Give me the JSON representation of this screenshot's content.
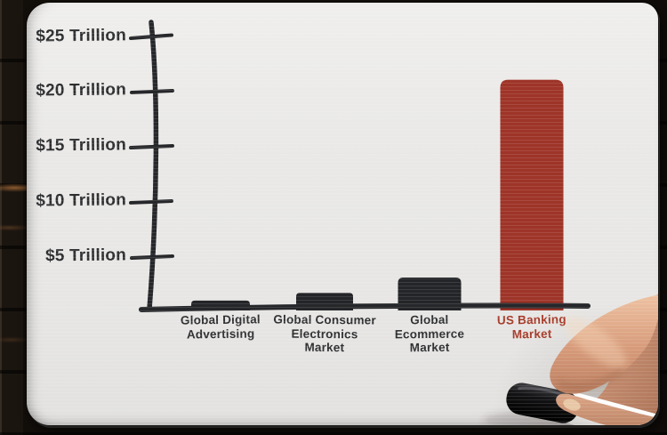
{
  "chart_data": {
    "type": "bar",
    "style": "hand-drawn whiteboard marker sketch",
    "title": "",
    "categories": [
      "Global Digital Advertising",
      "Global Consumer Electronics Market",
      "Global Ecommerce Market",
      "US Banking Market"
    ],
    "categories_lines": [
      [
        "Global Digital",
        "Advertising"
      ],
      [
        "Global Consumer",
        "Electronics",
        "Market"
      ],
      [
        "Global",
        "Ecommerce",
        "Market"
      ],
      [
        "US Banking",
        "Market"
      ]
    ],
    "values": [
      0.9,
      1.6,
      3,
      21
    ],
    "unit": "Trillion USD",
    "y_tick_labels": [
      "$25 Trillion",
      "$20 Trillion",
      "$15 Trillion",
      "$10 Trillion",
      "$5 Trillion"
    ],
    "y_tick_values": [
      25,
      20,
      15,
      10,
      5
    ],
    "ylim": [
      0,
      27
    ],
    "grid": "off",
    "legend": "none",
    "bar_colors": [
      "#242528",
      "#242528",
      "#242528",
      "#9e3428"
    ],
    "label_colors": [
      "#2e2f31",
      "#2e2f31",
      "#2e2f31",
      "#a63a28"
    ],
    "highlight_category": "US Banking Market",
    "highlight_color": "#9e3428",
    "axis_color": "#26272a"
  }
}
